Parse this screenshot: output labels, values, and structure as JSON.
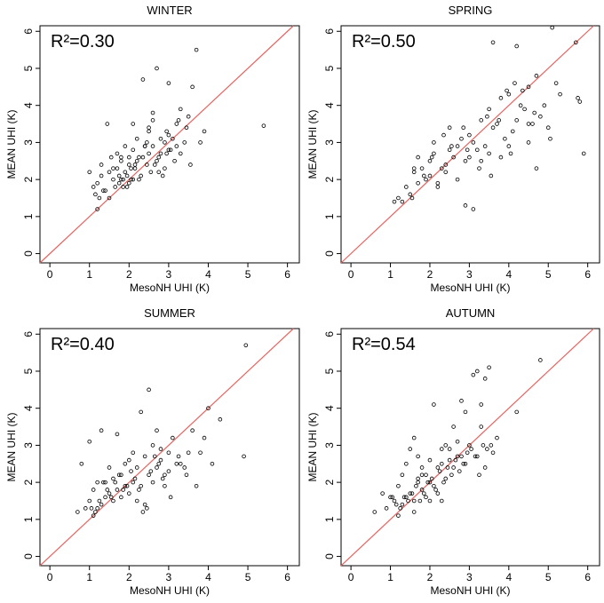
{
  "chart_data": [
    {
      "type": "scatter",
      "title": "WINTER",
      "r2_label": "R²=0.30",
      "xlabel": "MesoNH UHI (K)",
      "ylabel": "MEAN UHI (K)",
      "xlim": [
        -0.25,
        6.3
      ],
      "ylim": [
        -0.25,
        6.15
      ],
      "xticks": [
        "0",
        "1",
        "2",
        "3",
        "4",
        "5",
        "6"
      ],
      "yticks": [
        "0",
        "1",
        "2",
        "3",
        "4",
        "5",
        "6"
      ],
      "x": [
        1.0,
        1.1,
        1.15,
        1.2,
        1.3,
        1.3,
        1.4,
        1.45,
        1.5,
        1.5,
        1.6,
        1.65,
        1.7,
        1.7,
        1.75,
        1.8,
        1.8,
        1.85,
        1.9,
        1.9,
        1.95,
        2.0,
        2.0,
        2.05,
        2.1,
        2.1,
        2.15,
        2.2,
        2.25,
        2.3,
        2.35,
        2.4,
        2.45,
        2.5,
        2.5,
        2.55,
        2.6,
        2.6,
        2.7,
        2.7,
        2.8,
        2.8,
        2.9,
        2.9,
        2.95,
        3.0,
        3.05,
        3.1,
        3.2,
        3.2,
        3.3,
        3.4,
        3.5,
        3.6,
        3.8,
        3.9,
        5.4,
        1.2,
        2.0,
        2.2,
        2.4,
        2.6,
        3.0,
        3.3,
        1.6,
        1.8,
        2.1,
        2.5,
        2.75,
        3.0,
        1.25,
        1.35,
        1.85,
        2.15,
        2.35,
        2.65,
        2.85,
        3.15,
        3.45,
        3.7,
        1.55,
        1.75,
        1.95,
        2.05,
        2.25,
        2.45,
        2.75,
        2.95,
        3.25,
        3.55
      ],
      "y": [
        2.2,
        1.8,
        1.6,
        1.9,
        2.1,
        2.4,
        1.7,
        3.5,
        2.2,
        1.5,
        2.0,
        1.8,
        2.7,
        2.3,
        1.9,
        2.5,
        2.0,
        1.8,
        2.9,
        2.2,
        2.1,
        2.6,
        2.4,
        2.0,
        3.5,
        2.8,
        2.4,
        3.1,
        2.6,
        2.1,
        4.7,
        2.9,
        2.4,
        3.3,
        2.7,
        2.2,
        3.8,
        2.9,
        5.0,
        2.5,
        3.1,
        2.7,
        3.0,
        2.3,
        3.3,
        3.2,
        2.8,
        3.1,
        3.5,
        2.9,
        2.7,
        3.0,
        3.7,
        4.5,
        3.0,
        3.3,
        3.45,
        1.2,
        1.9,
        2.5,
        2.9,
        3.6,
        2.8,
        3.9,
        2.3,
        2.6,
        2.0,
        3.4,
        2.2,
        4.6,
        1.5,
        1.7,
        2.0,
        2.3,
        2.6,
        2.4,
        2.1,
        2.5,
        3.4,
        5.5,
        2.6,
        2.1,
        1.8,
        2.3,
        2.0,
        3.0,
        2.6,
        2.7,
        3.6,
        2.4
      ]
    },
    {
      "type": "scatter",
      "title": "SPRING",
      "r2_label": "R²=0.50",
      "xlabel": "MesoNH UHI (K)",
      "ylabel": "MEAN UHI (K)",
      "xlim": [
        -0.25,
        6.3
      ],
      "ylim": [
        -0.25,
        6.15
      ],
      "xticks": [
        "0",
        "1",
        "2",
        "3",
        "4",
        "5",
        "6"
      ],
      "yticks": [
        "0",
        "1",
        "2",
        "3",
        "4",
        "5",
        "6"
      ],
      "x": [
        1.1,
        1.2,
        1.4,
        1.5,
        1.6,
        1.7,
        1.7,
        1.8,
        1.9,
        2.0,
        2.0,
        2.1,
        2.2,
        2.3,
        2.4,
        2.5,
        2.5,
        2.6,
        2.7,
        2.8,
        2.9,
        2.9,
        3.0,
        3.0,
        3.1,
        3.2,
        3.3,
        3.3,
        3.4,
        3.5,
        3.5,
        3.6,
        3.7,
        3.8,
        3.8,
        3.9,
        4.0,
        4.0,
        4.1,
        4.2,
        4.2,
        4.3,
        4.4,
        4.5,
        4.5,
        4.6,
        4.7,
        4.8,
        4.9,
        5.0,
        5.1,
        5.3,
        5.7,
        5.8,
        5.9,
        1.3,
        1.6,
        2.1,
        2.4,
        2.7,
        3.1,
        3.45,
        3.6,
        4.15,
        4.5,
        4.7,
        5.05,
        5.75,
        1.85,
        2.2,
        2.55,
        2.85,
        3.25,
        3.75,
        4.35,
        2.35,
        2.95,
        3.55,
        4.05,
        4.65,
        5.2,
        1.55,
        2.05,
        3.95
      ],
      "y": [
        1.4,
        1.5,
        1.8,
        1.6,
        2.2,
        1.9,
        2.6,
        2.3,
        2.0,
        2.1,
        2.5,
        2.7,
        1.9,
        2.3,
        2.4,
        3.4,
        2.8,
        2.6,
        2.9,
        3.1,
        2.5,
        1.3,
        2.6,
        3.2,
        3.0,
        2.8,
        3.6,
        2.5,
        2.9,
        3.9,
        2.7,
        3.4,
        3.5,
        4.2,
        2.6,
        3.1,
        4.3,
        2.9,
        3.3,
        3.6,
        5.6,
        4.0,
        3.9,
        4.5,
        3.0,
        3.5,
        4.8,
        3.7,
        4.0,
        3.4,
        6.1,
        4.3,
        5.7,
        4.1,
        2.7,
        1.4,
        2.3,
        3.0,
        2.2,
        2.0,
        1.2,
        3.7,
        5.7,
        4.6,
        3.5,
        2.3,
        3.1,
        4.2,
        2.1,
        1.8,
        2.9,
        3.4,
        2.3,
        3.6,
        4.4,
        3.2,
        2.8,
        2.1,
        2.7,
        3.8,
        4.6,
        1.5,
        2.6,
        4.4
      ]
    },
    {
      "type": "scatter",
      "title": "SUMMER",
      "r2_label": "R²=0.40",
      "xlabel": "MesoNH UHI (K)",
      "ylabel": "MEAN UHI (K)",
      "xlim": [
        -0.25,
        6.3
      ],
      "ylim": [
        -0.25,
        6.15
      ],
      "xticks": [
        "0",
        "1",
        "2",
        "3",
        "4",
        "5",
        "6"
      ],
      "yticks": [
        "0",
        "1",
        "2",
        "3",
        "4",
        "5",
        "6"
      ],
      "x": [
        0.7,
        0.8,
        0.9,
        1.0,
        1.0,
        1.1,
        1.1,
        1.2,
        1.2,
        1.3,
        1.3,
        1.4,
        1.4,
        1.5,
        1.5,
        1.6,
        1.6,
        1.7,
        1.7,
        1.8,
        1.8,
        1.9,
        1.9,
        2.0,
        2.0,
        2.1,
        2.1,
        2.2,
        2.2,
        2.3,
        2.3,
        2.4,
        2.4,
        2.5,
        2.5,
        2.6,
        2.6,
        2.7,
        2.7,
        2.8,
        2.8,
        2.9,
        2.9,
        3.0,
        3.0,
        3.1,
        3.2,
        3.3,
        3.4,
        3.5,
        3.6,
        3.7,
        3.8,
        3.9,
        4.0,
        4.1,
        4.3,
        4.9,
        4.95,
        1.05,
        1.15,
        1.25,
        1.35,
        1.45,
        1.55,
        1.65,
        1.75,
        1.85,
        1.95,
        2.05,
        2.15,
        2.25,
        2.35,
        2.45,
        2.55,
        2.65,
        2.75,
        2.85,
        3.05,
        3.25,
        3.45
      ],
      "y": [
        1.2,
        2.5,
        1.3,
        1.5,
        3.1,
        1.1,
        1.8,
        1.3,
        2.0,
        1.4,
        3.4,
        1.6,
        2.0,
        1.7,
        2.4,
        1.5,
        2.1,
        1.8,
        3.3,
        1.6,
        2.2,
        1.9,
        2.5,
        1.7,
        2.6,
        2.0,
        2.8,
        1.5,
        2.4,
        1.9,
        3.9,
        1.4,
        2.7,
        2.2,
        4.5,
        2.0,
        3.0,
        2.4,
        3.4,
        2.6,
        2.9,
        1.9,
        2.2,
        2.3,
        2.8,
        3.2,
        2.5,
        2.5,
        2.4,
        2.8,
        3.4,
        1.9,
        2.8,
        3.2,
        4.0,
        2.5,
        3.7,
        2.7,
        5.7,
        1.3,
        1.2,
        1.5,
        2.0,
        1.8,
        1.6,
        2.0,
        2.2,
        1.8,
        1.9,
        2.3,
        2.1,
        1.8,
        1.2,
        1.3,
        2.3,
        2.7,
        2.5,
        2.1,
        1.6,
        2.7,
        2.2
      ]
    },
    {
      "type": "scatter",
      "title": "AUTUMN",
      "r2_label": "R²=0.54",
      "xlabel": "MesoNH UHI (K)",
      "ylabel": "MEAN UHI (K)",
      "xlim": [
        -0.25,
        6.3
      ],
      "ylim": [
        -0.25,
        6.15
      ],
      "xticks": [
        "0",
        "1",
        "2",
        "3",
        "4",
        "5",
        "6"
      ],
      "yticks": [
        "0",
        "1",
        "2",
        "3",
        "4",
        "5",
        "6"
      ],
      "x": [
        0.6,
        0.8,
        0.9,
        1.0,
        1.1,
        1.2,
        1.2,
        1.3,
        1.3,
        1.4,
        1.4,
        1.5,
        1.5,
        1.6,
        1.6,
        1.7,
        1.7,
        1.8,
        1.8,
        1.9,
        1.9,
        2.0,
        2.0,
        2.1,
        2.1,
        2.2,
        2.2,
        2.3,
        2.3,
        2.4,
        2.4,
        2.5,
        2.5,
        2.6,
        2.6,
        2.7,
        2.7,
        2.8,
        2.8,
        2.9,
        2.9,
        3.0,
        3.1,
        3.2,
        3.2,
        3.3,
        3.3,
        3.4,
        3.4,
        3.5,
        3.6,
        3.7,
        4.2,
        4.8,
        1.05,
        1.15,
        1.25,
        1.35,
        1.45,
        1.55,
        1.65,
        1.75,
        1.85,
        1.95,
        2.05,
        2.15,
        2.25,
        2.35,
        2.45,
        2.55,
        2.65,
        2.75,
        2.85,
        2.95,
        3.05,
        3.15,
        3.25,
        3.35,
        3.45,
        3.55,
        1.6,
        1.7,
        1.8,
        2.0,
        2.3
      ],
      "y": [
        1.2,
        1.7,
        1.3,
        1.6,
        1.5,
        1.1,
        1.9,
        1.4,
        2.2,
        1.6,
        2.5,
        1.7,
        2.9,
        1.5,
        3.2,
        2.0,
        2.7,
        1.8,
        2.4,
        1.6,
        2.2,
        1.5,
        2.6,
        1.9,
        4.1,
        1.7,
        2.4,
        2.5,
        2.9,
        2.1,
        3.0,
        2.6,
        2.9,
        2.4,
        3.5,
        2.7,
        3.1,
        2.7,
        4.2,
        2.5,
        3.9,
        3.0,
        4.9,
        2.7,
        5.0,
        3.5,
        4.1,
        2.4,
        4.8,
        5.1,
        2.8,
        3.2,
        3.9,
        5.3,
        1.6,
        1.4,
        1.3,
        1.6,
        1.5,
        1.7,
        1.9,
        1.5,
        1.7,
        2.0,
        2.1,
        1.8,
        2.3,
        2.0,
        2.4,
        2.2,
        2.6,
        2.3,
        2.5,
        2.8,
        2.9,
        2.7,
        2.2,
        3.0,
        2.9,
        3.0,
        1.2,
        2.1,
        2.2,
        2.0,
        1.5
      ]
    }
  ]
}
